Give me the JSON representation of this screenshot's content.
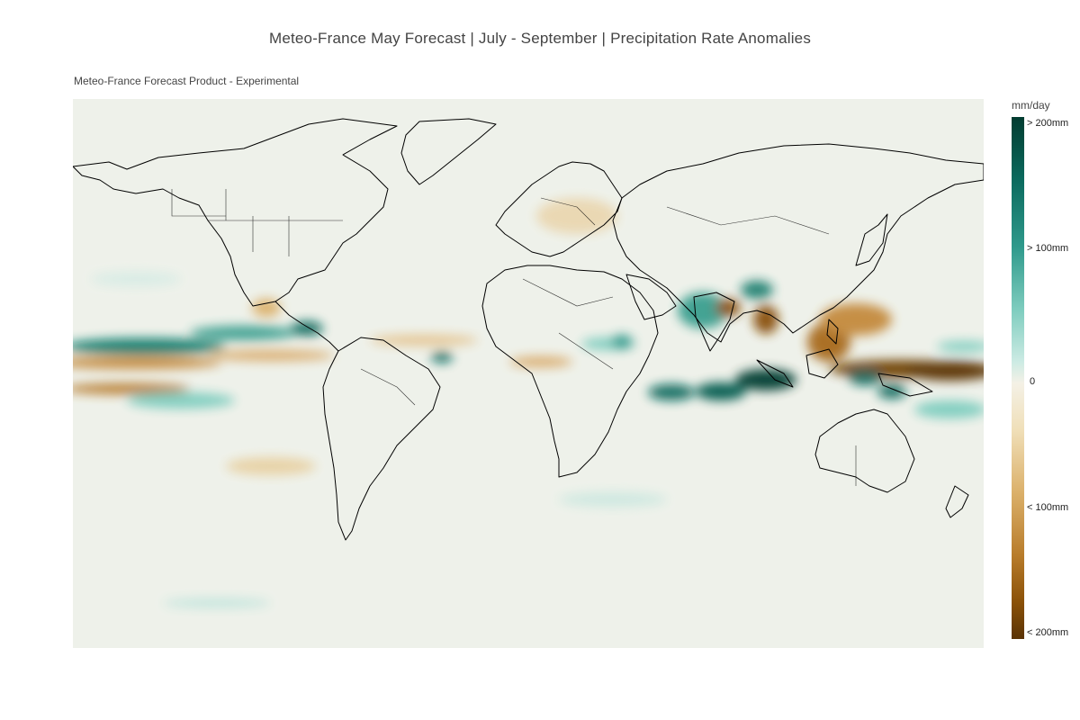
{
  "header": {
    "title": "Meteo-France May Forecast | July - September | Precipitation Rate Anomalies",
    "subtitle": "Meteo-France Forecast Product - Experimental"
  },
  "map": {
    "projection": "equirectangular",
    "variable": "Precipitation Rate Anomalies",
    "land_outline_color": "#000000",
    "background_color": "#eef1ea"
  },
  "colorbar": {
    "unit": "mm/day",
    "ticks": [
      "> 200mm",
      "> 100mm",
      "0",
      "< 100mm",
      "< 200mm"
    ],
    "colors": {
      "wet_max": "#013c30",
      "wet_mid": "#2f9a8c",
      "neutral": "#f4f1e6",
      "dry_mid": "#b87c2b",
      "dry_max": "#5a3305"
    }
  }
}
